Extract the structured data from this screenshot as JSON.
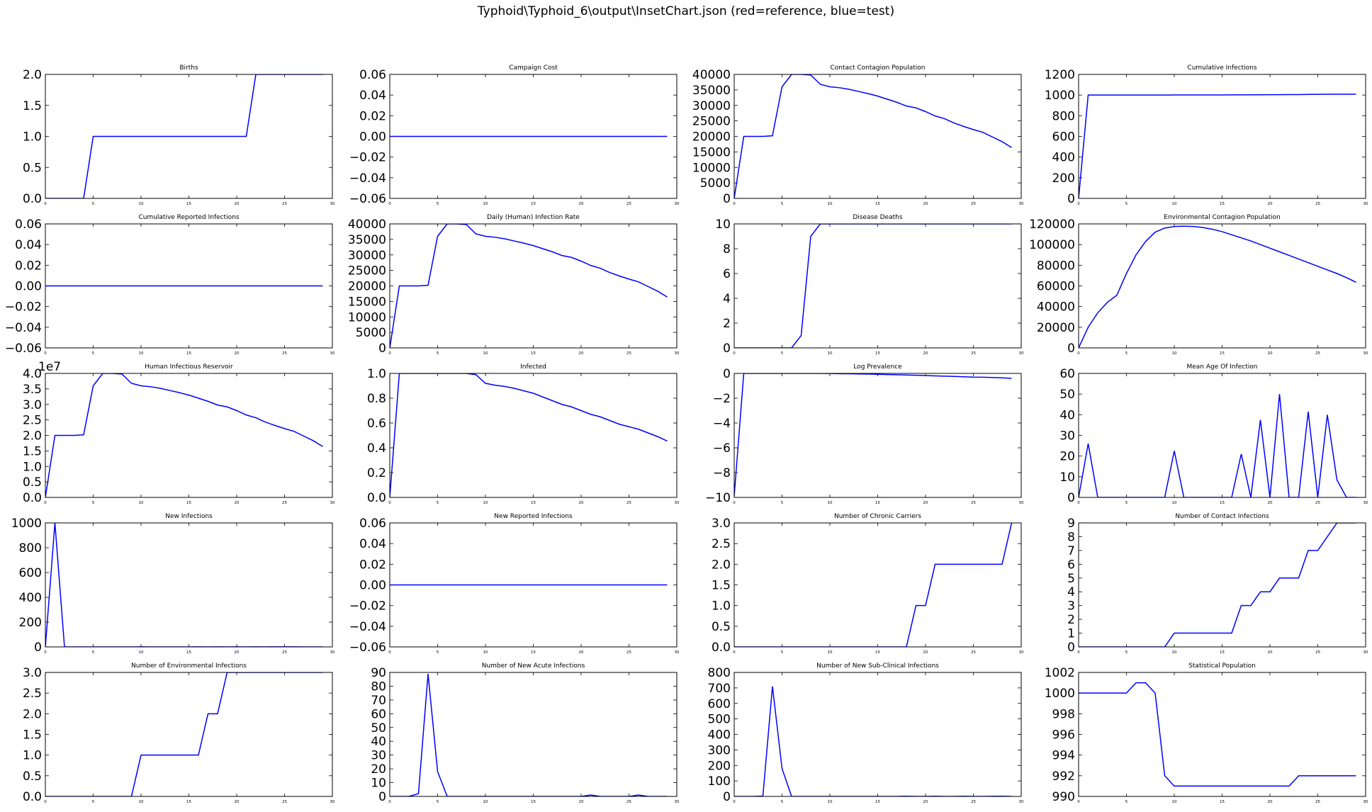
{
  "figure": {
    "title": "Typhoid\\Typhoid_6\\output\\InsetChart.json (red=reference, blue=test)"
  },
  "colors": {
    "test": "#0000ff",
    "reference": "#ff0000",
    "axes": "#000000"
  },
  "chart_data": [
    {
      "type": "line",
      "title": "Births",
      "xlim": [
        0,
        30
      ],
      "ylim": [
        0,
        2
      ],
      "xticks": [
        0,
        5,
        10,
        15,
        20,
        25,
        30
      ],
      "yticks": [
        "0.0",
        "0.5",
        "1.0",
        "1.5",
        "2.0"
      ],
      "series": [
        {
          "values": [
            0,
            0,
            0,
            0,
            0,
            1,
            1,
            1,
            1,
            1,
            1,
            1,
            1,
            1,
            1,
            1,
            1,
            1,
            1,
            1,
            1,
            1,
            2,
            2,
            2,
            2,
            2,
            2,
            2,
            2
          ]
        }
      ]
    },
    {
      "type": "line",
      "title": "Campaign Cost",
      "xlim": [
        0,
        30
      ],
      "ylim": [
        -0.06,
        0.06
      ],
      "xticks": [
        0,
        5,
        10,
        15,
        20,
        25,
        30
      ],
      "yticks": [
        "−0.06",
        "−0.04",
        "−0.02",
        "0.00",
        "0.02",
        "0.04",
        "0.06"
      ],
      "series": [
        {
          "values": [
            0,
            0,
            0,
            0,
            0,
            0,
            0,
            0,
            0,
            0,
            0,
            0,
            0,
            0,
            0,
            0,
            0,
            0,
            0,
            0,
            0,
            0,
            0,
            0,
            0,
            0,
            0,
            0,
            0,
            0
          ]
        }
      ]
    },
    {
      "type": "line",
      "title": "Contact Contagion Population",
      "xlim": [
        0,
        30
      ],
      "ylim": [
        0,
        40000
      ],
      "xticks": [
        0,
        5,
        10,
        15,
        20,
        25,
        30
      ],
      "yticks": [
        "0",
        "5000",
        "10000",
        "15000",
        "20000",
        "25000",
        "30000",
        "35000",
        "40000"
      ],
      "series": [
        {
          "values": [
            0,
            20000,
            20000,
            20000,
            20200,
            36000,
            40000,
            40000,
            39800,
            36800,
            36000,
            35700,
            35200,
            34500,
            33800,
            33000,
            32000,
            31000,
            29800,
            29200,
            28000,
            26600,
            25700,
            24300,
            23200,
            22200,
            21300,
            19800,
            18300,
            16400
          ]
        }
      ]
    },
    {
      "type": "line",
      "title": "Cumulative Infections",
      "xlim": [
        0,
        30
      ],
      "ylim": [
        0,
        1200
      ],
      "xticks": [
        0,
        5,
        10,
        15,
        20,
        25,
        30
      ],
      "yticks": [
        "0",
        "200",
        "400",
        "600",
        "800",
        "1000",
        "1200"
      ],
      "series": [
        {
          "values": [
            0,
            1000,
            1000,
            1000,
            1000,
            1000,
            1000,
            1000,
            1000,
            1000,
            1001,
            1001,
            1001,
            1001,
            1001,
            1001,
            1002,
            1002,
            1003,
            1003,
            1004,
            1004,
            1005,
            1005,
            1006,
            1007,
            1008,
            1008,
            1008,
            1008
          ]
        }
      ]
    },
    {
      "type": "line",
      "title": "Cumulative Reported Infections",
      "xlim": [
        0,
        30
      ],
      "ylim": [
        -0.06,
        0.06
      ],
      "xticks": [
        0,
        5,
        10,
        15,
        20,
        25,
        30
      ],
      "yticks": [
        "−0.06",
        "−0.04",
        "−0.02",
        "0.00",
        "0.02",
        "0.04",
        "0.06"
      ],
      "series": [
        {
          "values": [
            0,
            0,
            0,
            0,
            0,
            0,
            0,
            0,
            0,
            0,
            0,
            0,
            0,
            0,
            0,
            0,
            0,
            0,
            0,
            0,
            0,
            0,
            0,
            0,
            0,
            0,
            0,
            0,
            0,
            0
          ]
        }
      ]
    },
    {
      "type": "line",
      "title": "Daily (Human) Infection Rate",
      "xlim": [
        0,
        30
      ],
      "ylim": [
        0,
        40000
      ],
      "xticks": [
        0,
        5,
        10,
        15,
        20,
        25,
        30
      ],
      "yticks": [
        "0",
        "5000",
        "10000",
        "15000",
        "20000",
        "25000",
        "30000",
        "35000",
        "40000"
      ],
      "series": [
        {
          "values": [
            0,
            20000,
            20000,
            20000,
            20200,
            36000,
            40000,
            40000,
            39800,
            36800,
            36000,
            35700,
            35200,
            34500,
            33800,
            33000,
            32000,
            31000,
            29800,
            29200,
            28000,
            26600,
            25700,
            24300,
            23200,
            22200,
            21300,
            19800,
            18300,
            16400
          ]
        }
      ]
    },
    {
      "type": "line",
      "title": "Disease Deaths",
      "xlim": [
        0,
        30
      ],
      "ylim": [
        0,
        10
      ],
      "xticks": [
        0,
        5,
        10,
        15,
        20,
        25,
        30
      ],
      "yticks": [
        "0",
        "2",
        "4",
        "6",
        "8",
        "10"
      ],
      "series": [
        {
          "values": [
            0,
            0,
            0,
            0,
            0,
            0,
            0,
            1,
            9,
            10,
            10,
            10,
            10,
            10,
            10,
            10,
            10,
            10,
            10,
            10,
            10,
            10,
            10,
            10,
            10,
            10,
            10,
            10,
            10,
            10
          ]
        }
      ]
    },
    {
      "type": "line",
      "title": "Environmental Contagion Population",
      "xlim": [
        0,
        30
      ],
      "ylim": [
        0,
        120000
      ],
      "xticks": [
        0,
        5,
        10,
        15,
        20,
        25,
        30
      ],
      "yticks": [
        "0",
        "20000",
        "40000",
        "60000",
        "80000",
        "100000",
        "120000"
      ],
      "series": [
        {
          "values": [
            0,
            20000,
            34000,
            44000,
            51000,
            72000,
            90000,
            103000,
            112000,
            116000,
            117500,
            117800,
            117500,
            116500,
            114800,
            112500,
            109500,
            106500,
            103500,
            100000,
            96500,
            93000,
            89500,
            86000,
            82500,
            79000,
            75500,
            72000,
            68000,
            63500
          ]
        }
      ]
    },
    {
      "type": "line",
      "title": "Human Infectious Reservoir",
      "xlim": [
        0,
        30
      ],
      "ylim": [
        0,
        4.0
      ],
      "ymultiplier": "1e7",
      "xticks": [
        0,
        5,
        10,
        15,
        20,
        25,
        30
      ],
      "yticks": [
        "0.0",
        "0.5",
        "1.0",
        "1.5",
        "2.0",
        "2.5",
        "3.0",
        "3.5",
        "4.0"
      ],
      "series": [
        {
          "values": [
            0,
            2.0,
            2.0,
            2.0,
            2.02,
            3.6,
            4.0,
            4.0,
            3.98,
            3.68,
            3.6,
            3.57,
            3.52,
            3.45,
            3.38,
            3.3,
            3.2,
            3.1,
            2.98,
            2.92,
            2.8,
            2.66,
            2.57,
            2.43,
            2.32,
            2.22,
            2.13,
            1.98,
            1.83,
            1.64
          ]
        }
      ]
    },
    {
      "type": "line",
      "title": "Infected",
      "xlim": [
        0,
        30
      ],
      "ylim": [
        0,
        1.0
      ],
      "xticks": [
        0,
        5,
        10,
        15,
        20,
        25,
        30
      ],
      "yticks": [
        "0.0",
        "0.2",
        "0.4",
        "0.6",
        "0.8",
        "1.0"
      ],
      "series": [
        {
          "values": [
            0,
            1.0,
            1.0,
            1.0,
            1.0,
            1.0,
            1.0,
            1.0,
            1.0,
            0.99,
            0.92,
            0.905,
            0.895,
            0.88,
            0.86,
            0.84,
            0.81,
            0.78,
            0.75,
            0.73,
            0.7,
            0.67,
            0.65,
            0.62,
            0.59,
            0.57,
            0.55,
            0.52,
            0.49,
            0.455
          ]
        }
      ]
    },
    {
      "type": "line",
      "title": "Log Prevalence",
      "xlim": [
        0,
        30
      ],
      "ylim": [
        -10,
        0
      ],
      "xticks": [
        0,
        5,
        10,
        15,
        20,
        25,
        30
      ],
      "yticks": [
        "−10",
        "−8",
        "−6",
        "−4",
        "−2",
        "0"
      ],
      "series": [
        {
          "values": [
            -9.9,
            0,
            0,
            0,
            0,
            0,
            0,
            0,
            0,
            0,
            -0.01,
            -0.02,
            -0.03,
            -0.04,
            -0.05,
            -0.07,
            -0.09,
            -0.11,
            -0.13,
            -0.15,
            -0.17,
            -0.2,
            -0.22,
            -0.24,
            -0.27,
            -0.3,
            -0.31,
            -0.33,
            -0.36,
            -0.4
          ]
        }
      ]
    },
    {
      "type": "line",
      "title": "Mean Age Of Infection",
      "xlim": [
        0,
        30
      ],
      "ylim": [
        0,
        60
      ],
      "xticks": [
        0,
        5,
        10,
        15,
        20,
        25,
        30
      ],
      "yticks": [
        "0",
        "10",
        "20",
        "30",
        "40",
        "50",
        "60"
      ],
      "series": [
        {
          "values": [
            0,
            26,
            0,
            0,
            0,
            0,
            0,
            0,
            0,
            0,
            22.5,
            0,
            0,
            0,
            0,
            0,
            0,
            21,
            0,
            37.5,
            0,
            50,
            0,
            0,
            41.5,
            0,
            40,
            8.5,
            0,
            0
          ]
        }
      ]
    },
    {
      "type": "line",
      "title": "New Infections",
      "xlim": [
        0,
        30
      ],
      "ylim": [
        0,
        1000
      ],
      "xticks": [
        0,
        5,
        10,
        15,
        20,
        25,
        30
      ],
      "yticks": [
        "0",
        "200",
        "400",
        "600",
        "800",
        "1000"
      ],
      "series": [
        {
          "values": [
            0,
            1000,
            0,
            0,
            0,
            0,
            0,
            0,
            0,
            0,
            1,
            0,
            0,
            0,
            0,
            0,
            1,
            0,
            1,
            0,
            1,
            0,
            1,
            0,
            1,
            1,
            1,
            0,
            0,
            0
          ]
        }
      ]
    },
    {
      "type": "line",
      "title": "New Reported Infections",
      "xlim": [
        0,
        30
      ],
      "ylim": [
        -0.06,
        0.06
      ],
      "xticks": [
        0,
        5,
        10,
        15,
        20,
        25,
        30
      ],
      "yticks": [
        "−0.06",
        "−0.04",
        "−0.02",
        "0.00",
        "0.02",
        "0.04",
        "0.06"
      ],
      "series": [
        {
          "values": [
            0,
            0,
            0,
            0,
            0,
            0,
            0,
            0,
            0,
            0,
            0,
            0,
            0,
            0,
            0,
            0,
            0,
            0,
            0,
            0,
            0,
            0,
            0,
            0,
            0,
            0,
            0,
            0,
            0,
            0
          ]
        }
      ]
    },
    {
      "type": "line",
      "title": "Number of Chronic Carriers",
      "xlim": [
        0,
        30
      ],
      "ylim": [
        0,
        3.0
      ],
      "xticks": [
        0,
        5,
        10,
        15,
        20,
        25,
        30
      ],
      "yticks": [
        "0.0",
        "0.5",
        "1.0",
        "1.5",
        "2.0",
        "2.5",
        "3.0"
      ],
      "series": [
        {
          "values": [
            0,
            0,
            0,
            0,
            0,
            0,
            0,
            0,
            0,
            0,
            0,
            0,
            0,
            0,
            0,
            0,
            0,
            0,
            0,
            1,
            1,
            2,
            2,
            2,
            2,
            2,
            2,
            2,
            2,
            3
          ]
        }
      ]
    },
    {
      "type": "line",
      "title": "Number of Contact Infections",
      "xlim": [
        0,
        30
      ],
      "ylim": [
        0,
        9
      ],
      "xticks": [
        0,
        5,
        10,
        15,
        20,
        25,
        30
      ],
      "yticks": [
        "0",
        "1",
        "2",
        "3",
        "4",
        "5",
        "6",
        "7",
        "8",
        "9"
      ],
      "series": [
        {
          "values": [
            0,
            0,
            0,
            0,
            0,
            0,
            0,
            0,
            0,
            0,
            1,
            1,
            1,
            1,
            1,
            1,
            1,
            3,
            3,
            4,
            4,
            5,
            5,
            5,
            7,
            7,
            8,
            9,
            9,
            9
          ]
        }
      ]
    },
    {
      "type": "line",
      "title": "Number of Environmental Infections",
      "xlim": [
        0,
        30
      ],
      "ylim": [
        0,
        3.0
      ],
      "xticks": [
        0,
        5,
        10,
        15,
        20,
        25,
        30
      ],
      "yticks": [
        "0.0",
        "0.5",
        "1.0",
        "1.5",
        "2.0",
        "2.5",
        "3.0"
      ],
      "series": [
        {
          "values": [
            0,
            0,
            0,
            0,
            0,
            0,
            0,
            0,
            0,
            0,
            1,
            1,
            1,
            1,
            1,
            1,
            1,
            2,
            2,
            3,
            3,
            3,
            3,
            3,
            3,
            3,
            3,
            3,
            3,
            3
          ]
        }
      ]
    },
    {
      "type": "line",
      "title": "Number of New Acute Infections",
      "xlim": [
        0,
        30
      ],
      "ylim": [
        0,
        90
      ],
      "xticks": [
        0,
        5,
        10,
        15,
        20,
        25,
        30
      ],
      "yticks": [
        "0",
        "10",
        "20",
        "30",
        "40",
        "50",
        "60",
        "70",
        "80",
        "90"
      ],
      "series": [
        {
          "values": [
            0,
            0,
            0,
            2,
            89,
            18,
            0,
            0,
            0,
            0,
            0,
            0,
            0,
            0,
            0,
            0,
            0,
            0,
            0,
            0,
            0,
            1,
            0,
            0,
            0,
            0,
            1,
            0,
            0,
            0
          ]
        }
      ]
    },
    {
      "type": "line",
      "title": "Number of New Sub-Clinical Infections",
      "xlim": [
        0,
        30
      ],
      "ylim": [
        0,
        800
      ],
      "xticks": [
        0,
        5,
        10,
        15,
        20,
        25,
        30
      ],
      "yticks": [
        "0",
        "100",
        "200",
        "300",
        "400",
        "500",
        "600",
        "700",
        "800"
      ],
      "series": [
        {
          "values": [
            0,
            0,
            0,
            2,
            710,
            180,
            0,
            0,
            0,
            0,
            0,
            0,
            0,
            0,
            0,
            0,
            0,
            0,
            1,
            0,
            0,
            1,
            0,
            0,
            1,
            0,
            0,
            1,
            1,
            0
          ]
        }
      ]
    },
    {
      "type": "line",
      "title": "Statistical Population",
      "xlim": [
        0,
        30
      ],
      "ylim": [
        990,
        1002
      ],
      "xticks": [
        0,
        5,
        10,
        15,
        20,
        25,
        30
      ],
      "yticks": [
        "990",
        "992",
        "994",
        "996",
        "998",
        "1000",
        "1002"
      ],
      "series": [
        {
          "values": [
            1000,
            1000,
            1000,
            1000,
            1000,
            1000,
            1001,
            1001,
            1000,
            992,
            991,
            991,
            991,
            991,
            991,
            991,
            991,
            991,
            991,
            991,
            991,
            991,
            991,
            992,
            992,
            992,
            992,
            992,
            992,
            992
          ]
        }
      ]
    }
  ]
}
